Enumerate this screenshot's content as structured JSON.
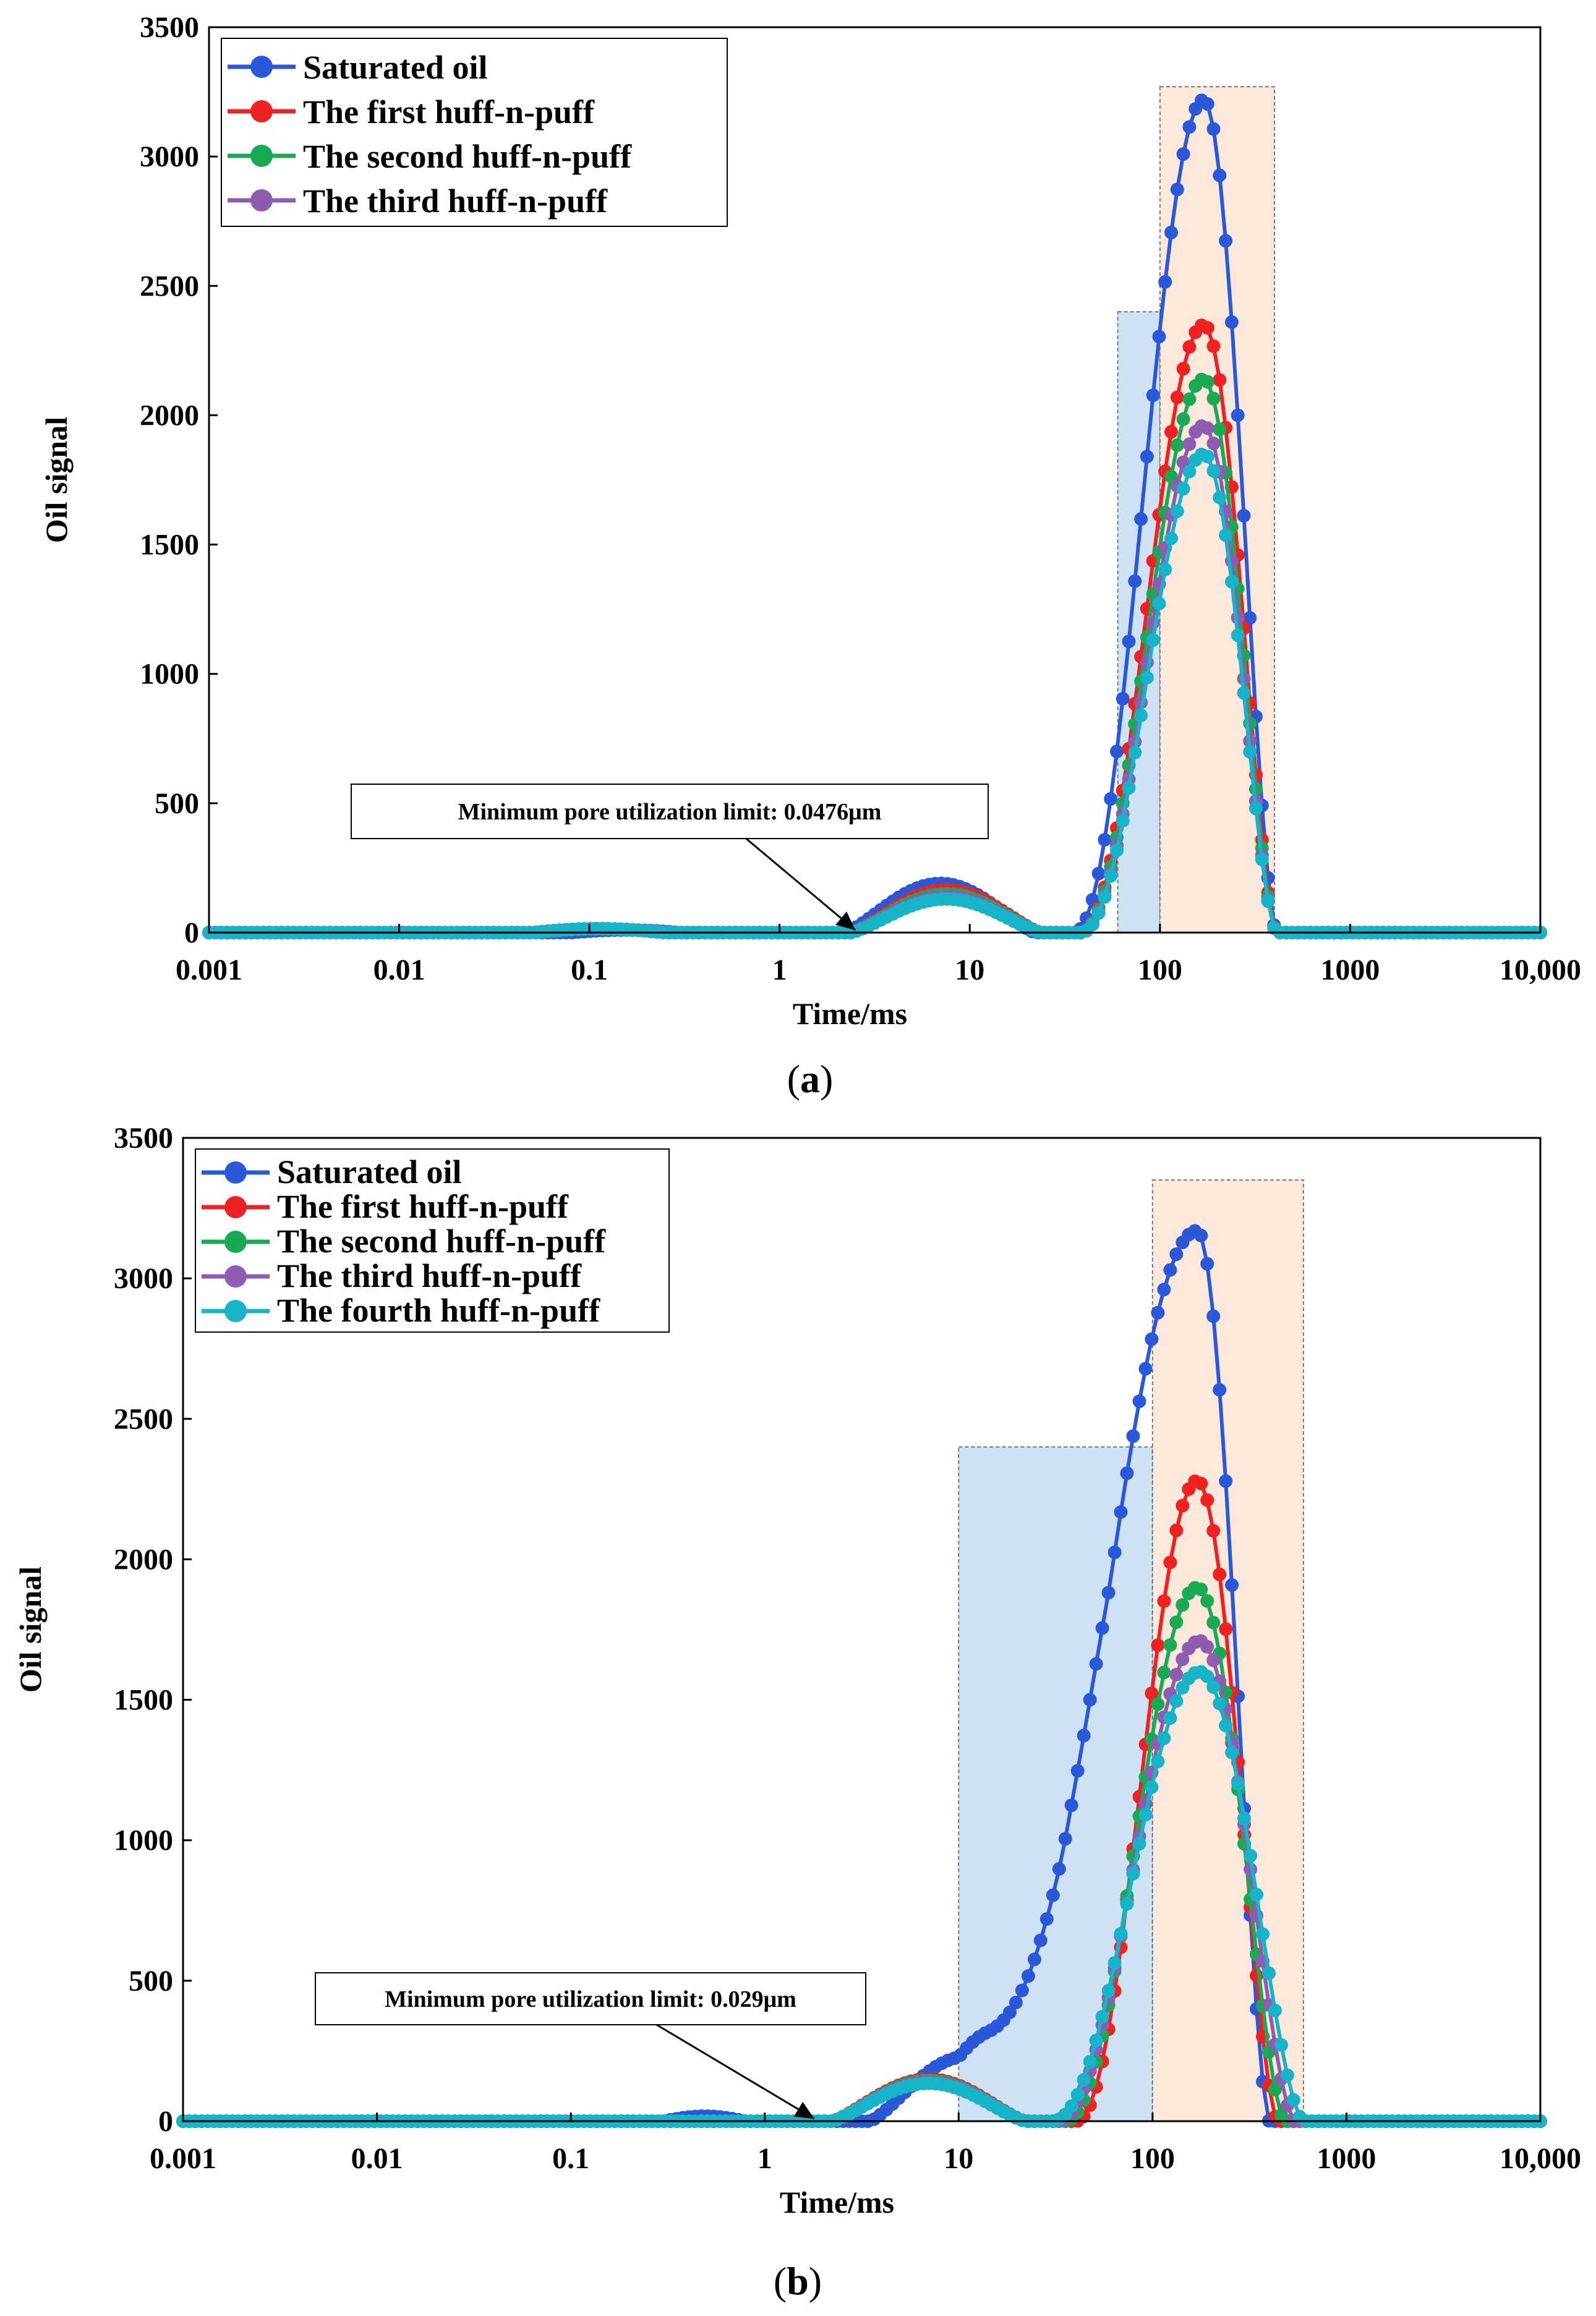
{
  "chart_data": [
    {
      "type": "line",
      "panel_label": "(a)",
      "panel_letter": "a",
      "xlabel": "Time/ms",
      "ylabel": "Oil signal",
      "xscale": "log",
      "xlim": [
        0.001,
        10000
      ],
      "ylim": [
        0,
        3500
      ],
      "xticks": [
        0.001,
        0.01,
        0.1,
        1,
        10,
        100,
        1000,
        10000
      ],
      "xtick_labels": [
        "0.001",
        "0.01",
        "0.1",
        "1",
        "10",
        "100",
        "1000",
        "10,000"
      ],
      "yticks": [
        0,
        500,
        1000,
        1500,
        2000,
        2500,
        3000,
        3500
      ],
      "ytick_labels": [
        "0",
        "500",
        "1000",
        "1500",
        "2000",
        "2500",
        "3000",
        "3500"
      ],
      "legend_position": "top-left",
      "annotation": {
        "text": "Minimum pore utilization limit: 0.0476μm",
        "x": 2.5,
        "y": 0
      },
      "shaded_regions": [
        {
          "x0": 60,
          "x1": 100,
          "ymax": 2400,
          "color": "#cfe2f3"
        },
        {
          "x0": 100,
          "x1": 400,
          "ymax": 3270,
          "color": "#fce9dc"
        }
      ],
      "series": [
        {
          "name": "Saturated oil",
          "color": "#2b58d8",
          "bumps": [
            [
              0.08,
              0.3,
              10
            ]
          ],
          "small": {
            "peak": 190,
            "center": 7
          },
          "main": {
            "peak": 3220,
            "center": 170,
            "start": 35,
            "end": 410,
            "shoulder": 0
          }
        },
        {
          "name": "The first huff-n-puff",
          "color": "#ee2222",
          "bumps": [
            [
              0.05,
              0.25,
              15
            ]
          ],
          "small": {
            "peak": 165,
            "center": 7.5
          },
          "main": {
            "peak": 2350,
            "center": 170,
            "start": 38,
            "end": 410,
            "shoulder": 0
          }
        },
        {
          "name": "The second huff-n-puff",
          "color": "#1aaa55",
          "bumps": [
            [
              0.05,
              0.25,
              15
            ]
          ],
          "small": {
            "peak": 150,
            "center": 7.5
          },
          "main": {
            "peak": 2140,
            "center": 170,
            "start": 38,
            "end": 410,
            "shoulder": 0
          }
        },
        {
          "name": "The third huff-n-puff",
          "color": "#8e5cb0",
          "bumps": [
            [
              0.05,
              0.25,
              15
            ]
          ],
          "small": {
            "peak": 140,
            "center": 7.5
          },
          "main": {
            "peak": 1960,
            "center": 170,
            "start": 38,
            "end": 410,
            "shoulder": 0
          }
        },
        {
          "name": "",
          "color": "#17b3c9",
          "legend": false,
          "bumps": [
            [
              0.05,
              0.25,
              15
            ]
          ],
          "small": {
            "peak": 130,
            "center": 7.5
          },
          "main": {
            "peak": 1850,
            "center": 170,
            "start": 38,
            "end": 410,
            "shoulder": 0
          }
        }
      ]
    },
    {
      "type": "line",
      "panel_label": "(b)",
      "panel_letter": "b",
      "xlabel": "Time/ms",
      "ylabel": "Oil signal",
      "xscale": "log",
      "xlim": [
        0.001,
        10000
      ],
      "ylim": [
        0,
        3500
      ],
      "xticks": [
        0.001,
        0.01,
        0.1,
        1,
        10,
        100,
        1000,
        10000
      ],
      "xtick_labels": [
        "0.001",
        "0.01",
        "0.1",
        "1",
        "10",
        "100",
        "1000",
        "10,000"
      ],
      "yticks": [
        0,
        500,
        1000,
        1500,
        2000,
        2500,
        3000,
        3500
      ],
      "ytick_labels": [
        "0",
        "500",
        "1000",
        "1500",
        "2000",
        "2500",
        "3000",
        "3500"
      ],
      "legend_position": "top-left",
      "annotation": {
        "text": "Minimum pore utilization limit: 0.029μm",
        "x": 1.8,
        "y": 0
      },
      "shaded_regions": [
        {
          "x0": 10,
          "x1": 100,
          "ymax": 2400,
          "color": "#cfe2f3"
        },
        {
          "x0": 100,
          "x1": 600,
          "ymax": 3350,
          "color": "#fce9dc"
        }
      ],
      "series": [
        {
          "name": "Saturated oil",
          "color": "#2b58d8",
          "bumps": [
            [
              0.3,
              0.8,
              18
            ]
          ],
          "small": {
            "peak": 230,
            "center": 11
          },
          "main": {
            "peak": 3170,
            "center": 170,
            "start": 14,
            "end": 400,
            "shoulder": 230
          }
        },
        {
          "name": "The first huff-n-puff",
          "color": "#ee2222",
          "bumps": [],
          "small": {
            "peak": 150,
            "center": 7
          },
          "main": {
            "peak": 2280,
            "center": 170,
            "start": 40,
            "end": 440,
            "shoulder": 0
          }
        },
        {
          "name": "The second huff-n-puff",
          "color": "#1aaa55",
          "bumps": [],
          "small": {
            "peak": 145,
            "center": 7
          },
          "main": {
            "peak": 1900,
            "center": 170,
            "start": 35,
            "end": 480,
            "shoulder": 0
          }
        },
        {
          "name": "The third huff-n-puff",
          "color": "#8e5cb0",
          "bumps": [],
          "small": {
            "peak": 140,
            "center": 7
          },
          "main": {
            "peak": 1710,
            "center": 175,
            "start": 32,
            "end": 540,
            "shoulder": 0
          }
        },
        {
          "name": "The fourth huff-n-puff",
          "color": "#17b3c9",
          "bumps": [],
          "small": {
            "peak": 135,
            "center": 7
          },
          "main": {
            "peak": 1600,
            "center": 175,
            "start": 30,
            "end": 600,
            "shoulder": 0
          }
        }
      ]
    }
  ]
}
